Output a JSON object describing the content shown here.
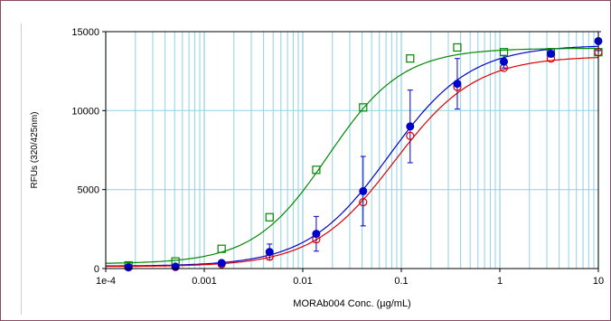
{
  "chart_data": {
    "type": "scatter",
    "title": "",
    "xlabel": "MORAb004 Conc. (µg/mL)",
    "ylabel": "RFUs (320/425nm)",
    "xscale": "log",
    "xlim": [
      0.0001,
      10
    ],
    "ylim": [
      0,
      15000
    ],
    "grid": "on",
    "legend": "none",
    "x_ticks": [
      {
        "value": 0.0001,
        "label": "1e-4"
      },
      {
        "value": 0.001,
        "label": "0.001"
      },
      {
        "value": 0.01,
        "label": "0.01"
      },
      {
        "value": 0.1,
        "label": "0.1"
      },
      {
        "value": 1,
        "label": "1"
      },
      {
        "value": 10,
        "label": "10"
      }
    ],
    "y_ticks": [
      {
        "value": 0,
        "label": "0"
      },
      {
        "value": 5000,
        "label": "5000"
      },
      {
        "value": 10000,
        "label": "10000"
      },
      {
        "value": 15000,
        "label": "15000"
      }
    ],
    "series": [
      {
        "color": "#0000cc",
        "marker": "filled-circle",
        "x": [
          0.00017,
          0.00051,
          0.0015,
          0.0046,
          0.0137,
          0.041,
          0.123,
          0.37,
          1.1,
          3.3,
          10
        ],
        "y": [
          80,
          120,
          350,
          1050,
          2200,
          4900,
          9000,
          11700,
          13100,
          13600,
          14400
        ],
        "error": [
          0,
          0,
          100,
          500,
          1100,
          2200,
          2300,
          1600,
          400,
          200,
          600
        ],
        "fit": {
          "model": "4PL",
          "bottom": 150,
          "top": 14150,
          "ec50": 0.075,
          "hill": 1.05
        }
      },
      {
        "color": "#dd0000",
        "marker": "open-circle",
        "x": [
          0.00017,
          0.00051,
          0.0015,
          0.0046,
          0.0137,
          0.041,
          0.123,
          0.37,
          1.1,
          3.3,
          10
        ],
        "y": [
          80,
          100,
          280,
          750,
          1850,
          4200,
          8400,
          11500,
          12700,
          13300,
          13700
        ],
        "error": [],
        "fit": {
          "model": "4PL",
          "bottom": 120,
          "top": 13450,
          "ec50": 0.085,
          "hill": 1.05
        }
      },
      {
        "color": "#008800",
        "marker": "open-square",
        "x": [
          0.00017,
          0.00051,
          0.0015,
          0.0046,
          0.0137,
          0.041,
          0.123,
          0.37,
          1.1,
          3.3,
          10
        ],
        "y": [
          200,
          450,
          1250,
          3250,
          6250,
          10200,
          13300,
          14000,
          13700,
          13700,
          13700
        ],
        "error": [],
        "fit": {
          "model": "4PL",
          "bottom": 300,
          "top": 13950,
          "ec50": 0.018,
          "hill": 1.15
        }
      }
    ]
  }
}
